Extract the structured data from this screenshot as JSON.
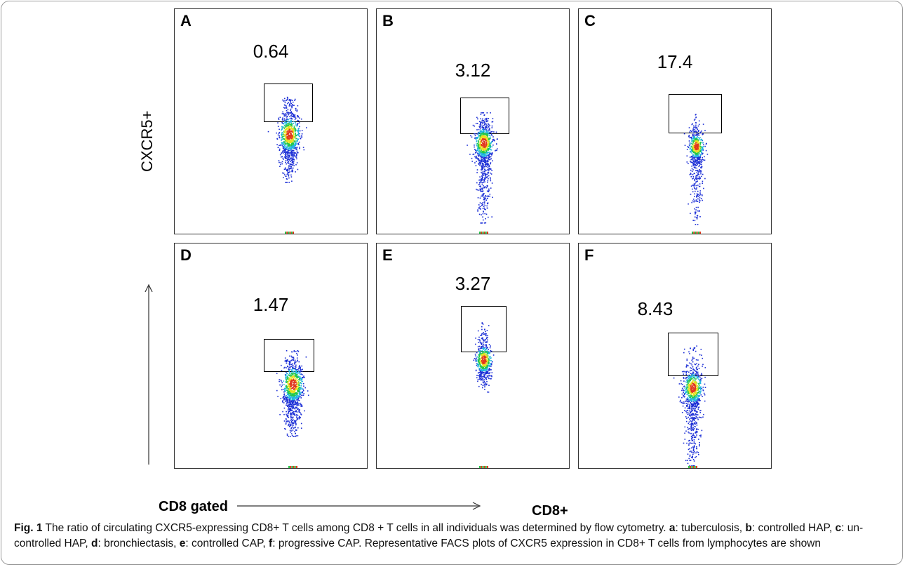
{
  "figure": {
    "y_axis_title": "CXCR5+",
    "x_axis_left": "CD8 gated",
    "x_axis_right": "CD8+",
    "panels": [
      {
        "letter": "A",
        "value": "0.64"
      },
      {
        "letter": "B",
        "value": "3.12"
      },
      {
        "letter": "C",
        "value": "17.4"
      },
      {
        "letter": "D",
        "value": "1.47"
      },
      {
        "letter": "E",
        "value": "3.27"
      },
      {
        "letter": "F",
        "value": "8.43"
      }
    ]
  },
  "caption": {
    "label": "Fig. 1",
    "text_1": " The ratio of circulating CXCR5-expressing CD8+ T cells among CD8 + T cells in all individuals was determined by flow cytometry. ",
    "key_a": "a",
    "text_a": ": tuberculosis, ",
    "key_b": "b",
    "text_b": ": controlled HAP, ",
    "key_c": "c",
    "text_c": ": un-controlled HAP, ",
    "key_d": "d",
    "text_d": ": bronchiectasis, ",
    "key_e": "e",
    "text_e": ": controlled CAP, ",
    "key_f": "f",
    "text_f": ": progressive CAP. Representative FACS plots of CXCR5 expression in CD8+ T cells from lymphocytes are shown"
  },
  "colors": {
    "low_density": "#1c2fd6",
    "mid_density": "#1fb5e0",
    "high_density": "#22c84a",
    "peak_density": "#e8e020",
    "hot": "#e2381c"
  }
}
